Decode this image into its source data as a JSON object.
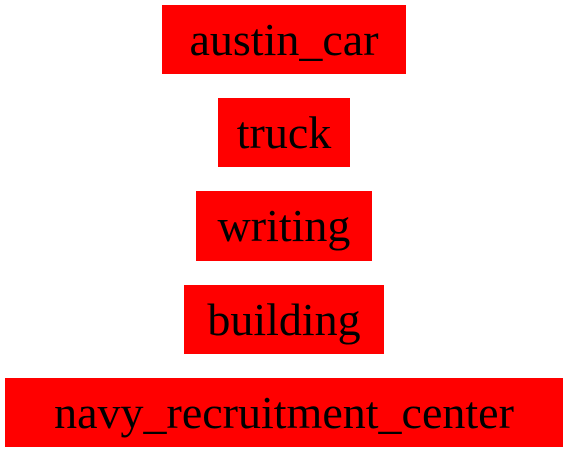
{
  "labels": [
    {
      "text": "austin_car"
    },
    {
      "text": "truck"
    },
    {
      "text": "writing"
    },
    {
      "text": "building"
    },
    {
      "text": "navy_recruitment_center"
    }
  ],
  "colors": {
    "label_background": "#ff0000",
    "label_text": "#000000",
    "page_background": "#ffffff"
  }
}
